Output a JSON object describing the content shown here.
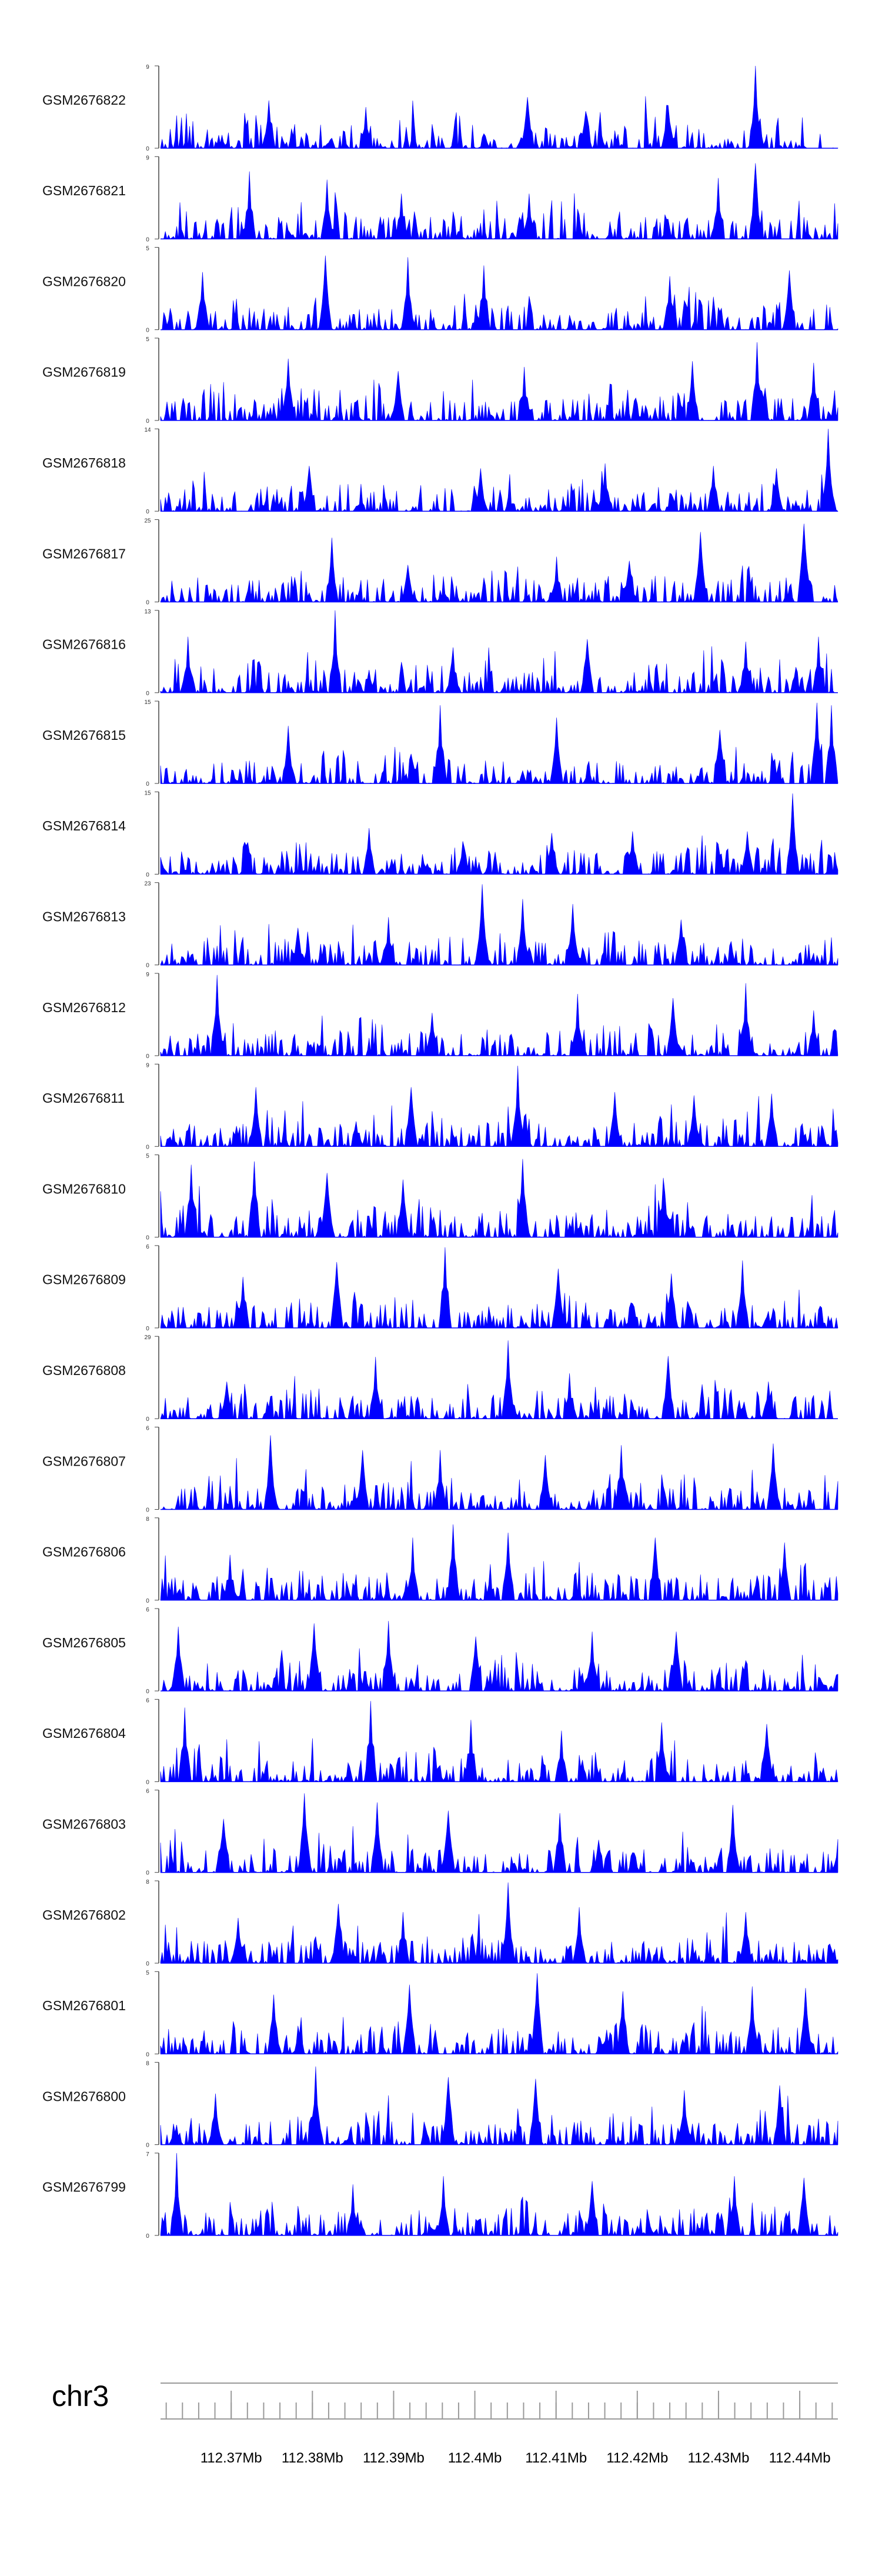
{
  "figure": {
    "fill_color": "#0000ff",
    "axis_color": "#444444",
    "ruler_color": "#9a9a9a"
  },
  "chart_data": {
    "type": "area",
    "title": "",
    "chromosome": "chr3",
    "xlabel": "",
    "ylabel": "",
    "x_unit": "Mb",
    "xlim": [
      112.3613,
      112.4447
    ],
    "x_ticks": [
      112.37,
      112.38,
      112.39,
      112.4,
      112.41,
      112.42,
      112.43,
      112.44
    ],
    "x_tick_labels": [
      "112.37Mb",
      "112.38Mb",
      "112.39Mb",
      "112.4Mb",
      "112.41Mb",
      "112.42Mb",
      "112.43Mb",
      "112.44Mb"
    ],
    "minor_tick_step": 0.002,
    "tracks": [
      {
        "name": "GSM2676822",
        "ylim": [
          0,
          9
        ],
        "peaks": [
          [
            0.878,
            1.0
          ],
          [
            0.161,
            0.58
          ],
          [
            0.542,
            0.62
          ],
          [
            0.302,
            0.5
          ],
          [
            0.749,
            0.52
          ],
          [
            0.627,
            0.45
          ]
        ]
      },
      {
        "name": "GSM2676821",
        "ylim": [
          0,
          9
        ],
        "peaks": [
          [
            0.878,
            0.92
          ],
          [
            0.131,
            0.82
          ],
          [
            0.246,
            0.72
          ],
          [
            0.824,
            0.74
          ],
          [
            0.544,
            0.55
          ],
          [
            0.355,
            0.55
          ]
        ]
      },
      {
        "name": "GSM2676820",
        "ylim": [
          0,
          5
        ],
        "peaks": [
          [
            0.244,
            0.9
          ],
          [
            0.365,
            0.88
          ],
          [
            0.478,
            0.78
          ],
          [
            0.752,
            0.65
          ],
          [
            0.061,
            0.7
          ],
          [
            0.928,
            0.72
          ]
        ]
      },
      {
        "name": "GSM2676819",
        "ylim": [
          0,
          5
        ],
        "peaks": [
          [
            0.881,
            0.95
          ],
          [
            0.785,
            0.72
          ],
          [
            0.188,
            0.75
          ],
          [
            0.536,
            0.65
          ],
          [
            0.351,
            0.6
          ],
          [
            0.965,
            0.7
          ]
        ]
      },
      {
        "name": "GSM2676818",
        "ylim": [
          0,
          14
        ],
        "peaks": [
          [
            0.985,
            1.0
          ],
          [
            0.219,
            0.55
          ],
          [
            0.657,
            0.58
          ],
          [
            0.816,
            0.55
          ],
          [
            0.473,
            0.52
          ],
          [
            0.909,
            0.52
          ]
        ]
      },
      {
        "name": "GSM2676817",
        "ylim": [
          0,
          25
        ],
        "peaks": [
          [
            0.253,
            0.78
          ],
          [
            0.798,
            0.85
          ],
          [
            0.949,
            0.95
          ],
          [
            0.585,
            0.55
          ],
          [
            0.364,
            0.45
          ],
          [
            0.691,
            0.5
          ]
        ]
      },
      {
        "name": "GSM2676816",
        "ylim": [
          0,
          13
        ],
        "peaks": [
          [
            0.258,
            1.0
          ],
          [
            0.041,
            0.68
          ],
          [
            0.631,
            0.65
          ],
          [
            0.863,
            0.62
          ],
          [
            0.432,
            0.55
          ],
          [
            0.972,
            0.68
          ]
        ]
      },
      {
        "name": "GSM2676815",
        "ylim": [
          0,
          15
        ],
        "peaks": [
          [
            0.413,
            0.95
          ],
          [
            0.969,
            0.98
          ],
          [
            0.991,
            0.95
          ],
          [
            0.188,
            0.7
          ],
          [
            0.584,
            0.8
          ],
          [
            0.826,
            0.65
          ]
        ]
      },
      {
        "name": "GSM2676814",
        "ylim": [
          0,
          15
        ],
        "peaks": [
          [
            0.934,
            0.98
          ],
          [
            0.309,
            0.56
          ],
          [
            0.578,
            0.5
          ],
          [
            0.698,
            0.52
          ],
          [
            0.446,
            0.4
          ],
          [
            0.867,
            0.52
          ]
        ]
      },
      {
        "name": "GSM2676813",
        "ylim": [
          0,
          23
        ],
        "peaks": [
          [
            0.475,
            0.98
          ],
          [
            0.535,
            0.8
          ],
          [
            0.609,
            0.74
          ],
          [
            0.337,
            0.58
          ],
          [
            0.769,
            0.55
          ],
          [
            0.204,
            0.45
          ]
        ]
      },
      {
        "name": "GSM2676812",
        "ylim": [
          0,
          9
        ],
        "peaks": [
          [
            0.083,
            0.98
          ],
          [
            0.864,
            0.88
          ],
          [
            0.616,
            0.75
          ],
          [
            0.402,
            0.52
          ],
          [
            0.965,
            0.55
          ],
          [
            0.756,
            0.7
          ]
        ]
      },
      {
        "name": "GSM2676811",
        "ylim": [
          0,
          9
        ],
        "peaks": [
          [
            0.528,
            0.98
          ],
          [
            0.142,
            0.72
          ],
          [
            0.369,
            0.72
          ],
          [
            0.787,
            0.62
          ],
          [
            0.671,
            0.66
          ],
          [
            0.902,
            0.64
          ]
        ]
      },
      {
        "name": "GSM2676810",
        "ylim": [
          0,
          5
        ],
        "peaks": [
          [
            0.535,
            0.95
          ],
          [
            0.138,
            0.92
          ],
          [
            0.247,
            0.78
          ],
          [
            0.743,
            0.72
          ],
          [
            0.358,
            0.7
          ],
          [
            0.045,
            0.88
          ]
        ]
      },
      {
        "name": "GSM2676809",
        "ylim": [
          0,
          6
        ],
        "peaks": [
          [
            0.419,
            0.98
          ],
          [
            0.259,
            0.8
          ],
          [
            0.587,
            0.72
          ],
          [
            0.858,
            0.82
          ],
          [
            0.753,
            0.66
          ],
          [
            0.121,
            0.62
          ]
        ]
      },
      {
        "name": "GSM2676808",
        "ylim": [
          0,
          29
        ],
        "peaks": [
          [
            0.513,
            0.95
          ],
          [
            0.318,
            0.75
          ],
          [
            0.749,
            0.76
          ],
          [
            0.604,
            0.55
          ],
          [
            0.099,
            0.45
          ],
          [
            0.898,
            0.45
          ]
        ]
      },
      {
        "name": "GSM2676807",
        "ylim": [
          0,
          6
        ],
        "peaks": [
          [
            0.163,
            0.9
          ],
          [
            0.681,
            0.78
          ],
          [
            0.412,
            0.72
          ],
          [
            0.905,
            0.8
          ],
          [
            0.298,
            0.72
          ],
          [
            0.568,
            0.66
          ]
        ]
      },
      {
        "name": "GSM2676806",
        "ylim": [
          0,
          8
        ],
        "peaks": [
          [
            0.432,
            0.92
          ],
          [
            0.514,
            0.82
          ],
          [
            0.373,
            0.76
          ],
          [
            0.731,
            0.76
          ],
          [
            0.922,
            0.7
          ],
          [
            0.102,
            0.55
          ]
        ]
      },
      {
        "name": "GSM2676805",
        "ylim": [
          0,
          6
        ],
        "peaks": [
          [
            0.337,
            0.85
          ],
          [
            0.027,
            0.78
          ],
          [
            0.226,
            0.82
          ],
          [
            0.762,
            0.72
          ],
          [
            0.465,
            0.66
          ],
          [
            0.637,
            0.72
          ]
        ]
      },
      {
        "name": "GSM2676804",
        "ylim": [
          0,
          6
        ],
        "peaks": [
          [
            0.311,
            0.98
          ],
          [
            0.036,
            0.9
          ],
          [
            0.459,
            0.75
          ],
          [
            0.739,
            0.72
          ],
          [
            0.593,
            0.62
          ],
          [
            0.895,
            0.7
          ]
        ]
      },
      {
        "name": "GSM2676803",
        "ylim": [
          0,
          6
        ],
        "peaks": [
          [
            0.213,
            0.96
          ],
          [
            0.319,
            0.85
          ],
          [
            0.589,
            0.72
          ],
          [
            0.426,
            0.75
          ],
          [
            0.844,
            0.82
          ],
          [
            0.093,
            0.65
          ]
        ]
      },
      {
        "name": "GSM2676802",
        "ylim": [
          0,
          8
        ],
        "peaks": [
          [
            0.512,
            0.98
          ],
          [
            0.262,
            0.72
          ],
          [
            0.357,
            0.62
          ],
          [
            0.619,
            0.68
          ],
          [
            0.864,
            0.62
          ],
          [
            0.114,
            0.55
          ]
        ]
      },
      {
        "name": "GSM2676801",
        "ylim": [
          0,
          5
        ],
        "peaks": [
          [
            0.555,
            0.98
          ],
          [
            0.367,
            0.84
          ],
          [
            0.167,
            0.72
          ],
          [
            0.873,
            0.82
          ],
          [
            0.682,
            0.76
          ],
          [
            0.952,
            0.8
          ]
        ]
      },
      {
        "name": "GSM2676800",
        "ylim": [
          0,
          8
        ],
        "peaks": [
          [
            0.228,
            0.95
          ],
          [
            0.426,
            0.82
          ],
          [
            0.553,
            0.8
          ],
          [
            0.081,
            0.62
          ],
          [
            0.774,
            0.66
          ],
          [
            0.914,
            0.72
          ]
        ]
      },
      {
        "name": "GSM2676799",
        "ylim": [
          0,
          7
        ],
        "peaks": [
          [
            0.024,
            1.0
          ],
          [
            0.417,
            0.72
          ],
          [
            0.847,
            0.72
          ],
          [
            0.638,
            0.66
          ],
          [
            0.284,
            0.62
          ],
          [
            0.951,
            0.7
          ]
        ]
      }
    ]
  }
}
